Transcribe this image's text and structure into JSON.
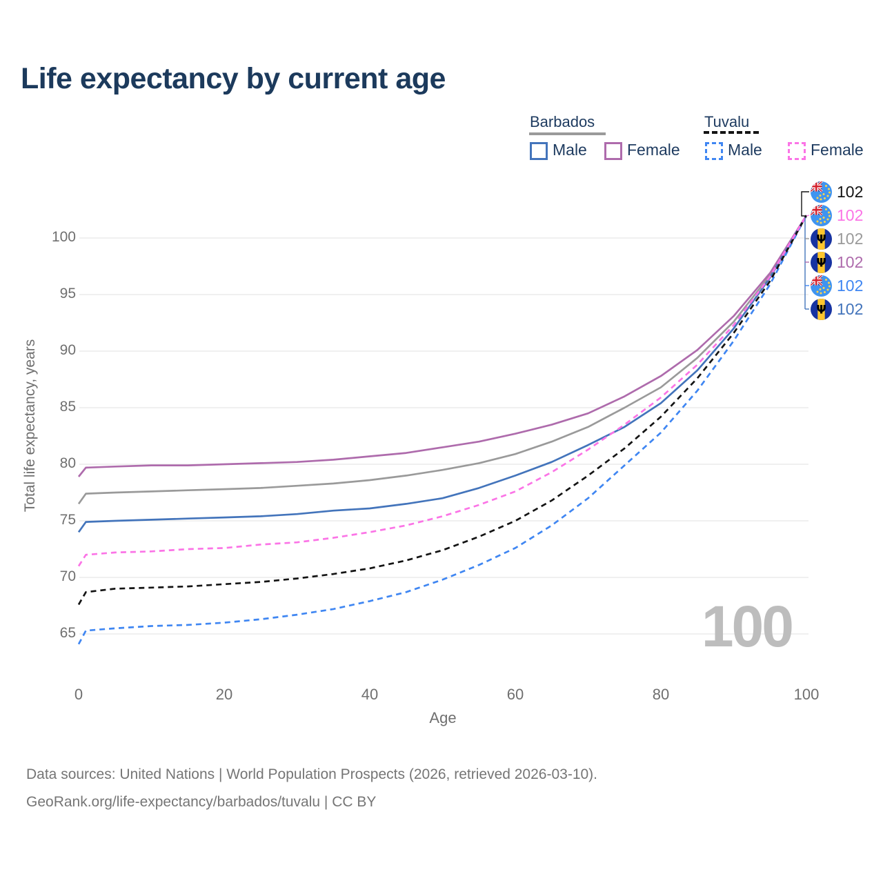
{
  "title": "Life expectancy by current age",
  "legend": {
    "groups": [
      {
        "name": "Barbados",
        "line_style": "solid",
        "line_color": "#9a9a9a",
        "items": [
          {
            "label": "Male",
            "color": "#4374bb",
            "dashed": false
          },
          {
            "label": "Female",
            "color": "#ae6bac",
            "dashed": false
          }
        ]
      },
      {
        "name": "Tuvalu",
        "line_style": "dashed",
        "line_color": "#141414",
        "items": [
          {
            "label": "Male",
            "color": "#3f86f2",
            "dashed": true
          },
          {
            "label": "Female",
            "color": "#fb74e6",
            "dashed": true
          }
        ]
      }
    ]
  },
  "chart_data": {
    "type": "line",
    "title": "Life expectancy by current age",
    "xlabel": "Age",
    "ylabel": "Total life expectancy, years",
    "xlim": [
      0,
      100
    ],
    "ylim": [
      63,
      103
    ],
    "xticks": [
      0,
      20,
      40,
      60,
      80,
      100
    ],
    "yticks": [
      65,
      70,
      75,
      80,
      85,
      90,
      95,
      100
    ],
    "grid": "horizontal-only",
    "legend_position": "top-right",
    "x": [
      0,
      1,
      5,
      10,
      15,
      20,
      25,
      30,
      35,
      40,
      45,
      50,
      55,
      60,
      65,
      70,
      75,
      80,
      85,
      90,
      95,
      100
    ],
    "series": [
      {
        "name": "Barbados Both sexes",
        "country": "Barbados",
        "sex": "Both",
        "style": "solid",
        "color": "#9a9a9a",
        "values": [
          76.5,
          77.4,
          77.5,
          77.6,
          77.7,
          77.8,
          77.9,
          78.1,
          78.3,
          78.6,
          79.0,
          79.5,
          80.1,
          80.9,
          82.0,
          83.3,
          85.0,
          86.8,
          89.4,
          92.6,
          96.7,
          102
        ]
      },
      {
        "name": "Barbados Female",
        "country": "Barbados",
        "sex": "Female",
        "style": "solid",
        "color": "#ae6bac",
        "values": [
          78.9,
          79.7,
          79.8,
          79.9,
          79.9,
          80.0,
          80.1,
          80.2,
          80.4,
          80.7,
          81.0,
          81.5,
          82.0,
          82.7,
          83.5,
          84.5,
          86.0,
          87.8,
          90.1,
          93.1,
          96.9,
          102
        ]
      },
      {
        "name": "Barbados Male",
        "country": "Barbados",
        "sex": "Male",
        "style": "solid",
        "color": "#4374bb",
        "values": [
          74.0,
          74.9,
          75.0,
          75.1,
          75.2,
          75.3,
          75.4,
          75.6,
          75.9,
          76.1,
          76.5,
          77.0,
          77.9,
          79.0,
          80.2,
          81.7,
          83.3,
          85.4,
          88.3,
          92.0,
          96.5,
          102
        ]
      },
      {
        "name": "Tuvalu Male",
        "country": "Tuvalu",
        "sex": "Male",
        "style": "dashed",
        "color": "#3f86f2",
        "values": [
          64.1,
          65.3,
          65.5,
          65.7,
          65.8,
          66.0,
          66.3,
          66.7,
          67.2,
          67.9,
          68.7,
          69.8,
          71.1,
          72.6,
          74.6,
          77.0,
          79.9,
          82.8,
          86.5,
          90.9,
          95.9,
          102
        ]
      },
      {
        "name": "Tuvalu Both sexes",
        "country": "Tuvalu",
        "sex": "Both",
        "style": "dashed",
        "color": "#141414",
        "values": [
          67.6,
          68.7,
          69.0,
          69.1,
          69.2,
          69.4,
          69.6,
          69.9,
          70.3,
          70.8,
          71.5,
          72.4,
          73.6,
          75.0,
          76.8,
          79.0,
          81.4,
          84.2,
          87.6,
          91.6,
          96.2,
          102
        ]
      },
      {
        "name": "Tuvalu Female",
        "country": "Tuvalu",
        "sex": "Female",
        "style": "dashed",
        "color": "#fb74e6",
        "values": [
          71.0,
          72.0,
          72.2,
          72.3,
          72.5,
          72.6,
          72.9,
          73.1,
          73.5,
          74.0,
          74.6,
          75.4,
          76.4,
          77.6,
          79.3,
          81.3,
          83.5,
          85.9,
          88.8,
          92.3,
          96.6,
          102
        ]
      }
    ]
  },
  "end_labels": [
    {
      "flag": "tuvalu",
      "series": "Tuvalu Both sexes",
      "value": "102",
      "color": "#141414"
    },
    {
      "flag": "tuvalu",
      "series": "Tuvalu Female",
      "value": "102",
      "color": "#fb74e6"
    },
    {
      "flag": "barbados",
      "series": "Barbados Both sexes",
      "value": "102",
      "color": "#9a9a9a"
    },
    {
      "flag": "barbados",
      "series": "Barbados Female",
      "value": "102",
      "color": "#ae6bac"
    },
    {
      "flag": "tuvalu",
      "series": "Tuvalu Male",
      "value": "102",
      "color": "#3f86f2"
    },
    {
      "flag": "barbados",
      "series": "Barbados Male",
      "value": "102",
      "color": "#4374bb"
    }
  ],
  "watermark_age": "100",
  "footer": {
    "line1": "Data sources: United Nations | World Population Prospects (2026, retrieved 2026-03-10).",
    "line2": "GeoRank.org/life-expectancy/barbados/tuvalu | CC BY"
  }
}
